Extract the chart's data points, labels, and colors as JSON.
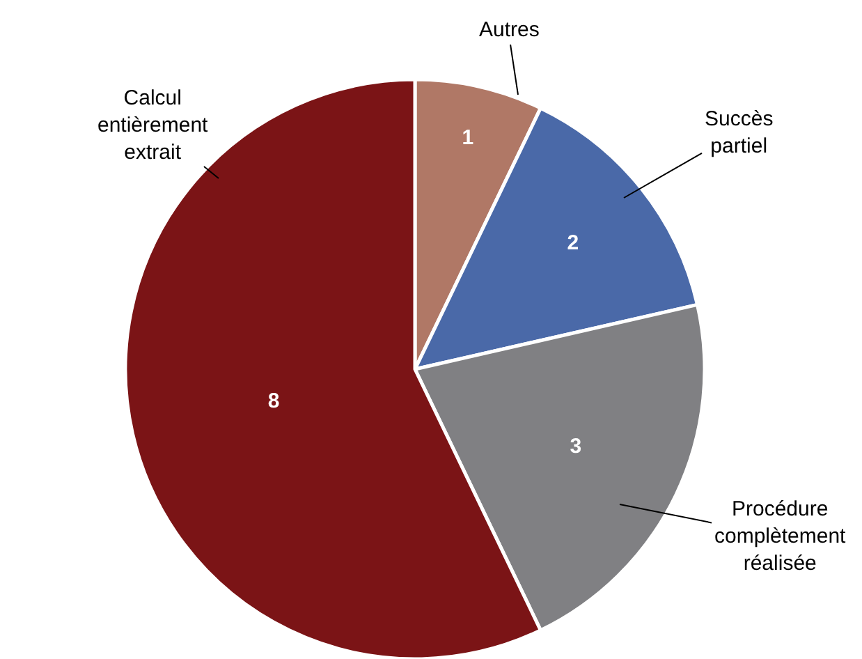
{
  "chart_data": {
    "type": "pie",
    "categories": [
      "Autres",
      "Succès partiel",
      "Procédure complètement réalisée",
      "Calcul entièrement extrait"
    ],
    "values": [
      1,
      2,
      3,
      8
    ],
    "colors": [
      "#b07866",
      "#4a69a8",
      "#808083",
      "#7b1416"
    ],
    "data_labels": true,
    "legend": false
  }
}
